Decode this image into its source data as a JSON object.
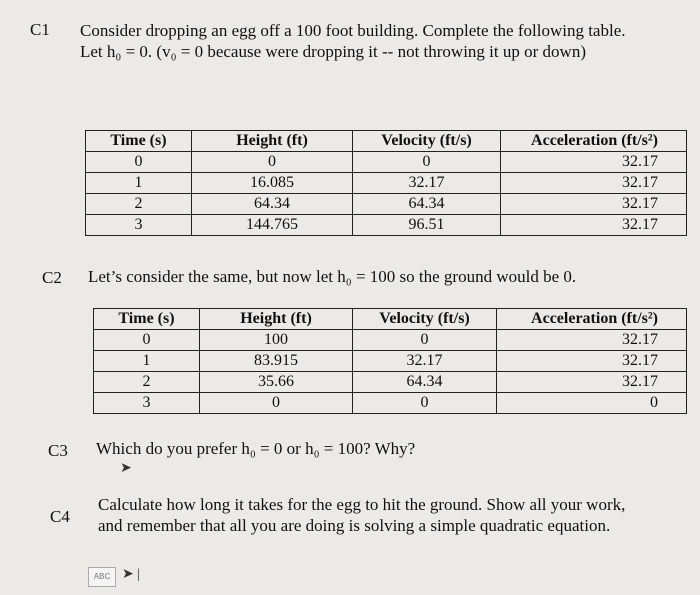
{
  "sections": [
    {
      "label": "C1",
      "text": "Consider dropping an egg off a 100 foot building. Complete the following table. Let h₀ = 0. (v₀ = 0 because were dropping it -- not throwing it up or down)",
      "table": {
        "header": [
          "Time (s)",
          "Height (ft)",
          "Velocity (ft/s)",
          "Acceleration (ft/s²)"
        ],
        "rows": [
          [
            "0",
            "0",
            "0",
            "32.17"
          ],
          [
            "1",
            "16.085",
            "32.17",
            "32.17"
          ],
          [
            "2",
            "64.34",
            "64.34",
            "32.17"
          ],
          [
            "3",
            "144.765",
            "96.51",
            "32.17"
          ]
        ]
      }
    },
    {
      "label": "C2",
      "text": "Let’s consider the same, but now let h₀ = 100 so the ground would be 0.",
      "table": {
        "header": [
          "Time (s)",
          "Height (ft)",
          "Velocity (ft/s)",
          "Acceleration (ft/s²)"
        ],
        "rows": [
          [
            "0",
            "100",
            "0",
            "32.17"
          ],
          [
            "1",
            "83.915",
            "32.17",
            "32.17"
          ],
          [
            "2",
            "35.66",
            "64.34",
            "32.17"
          ],
          [
            "3",
            "0",
            "0",
            "0"
          ]
        ]
      }
    },
    {
      "label": "C3",
      "text": "Which do you prefer h₀ = 0 or h₀ = 100? Why?"
    },
    {
      "label": "C4",
      "text": "Calculate how long it takes for the egg to hit the ground. Show all your work, and remember that all you are doing is solving a simple quadratic equation."
    }
  ],
  "icon_label": "ABC"
}
